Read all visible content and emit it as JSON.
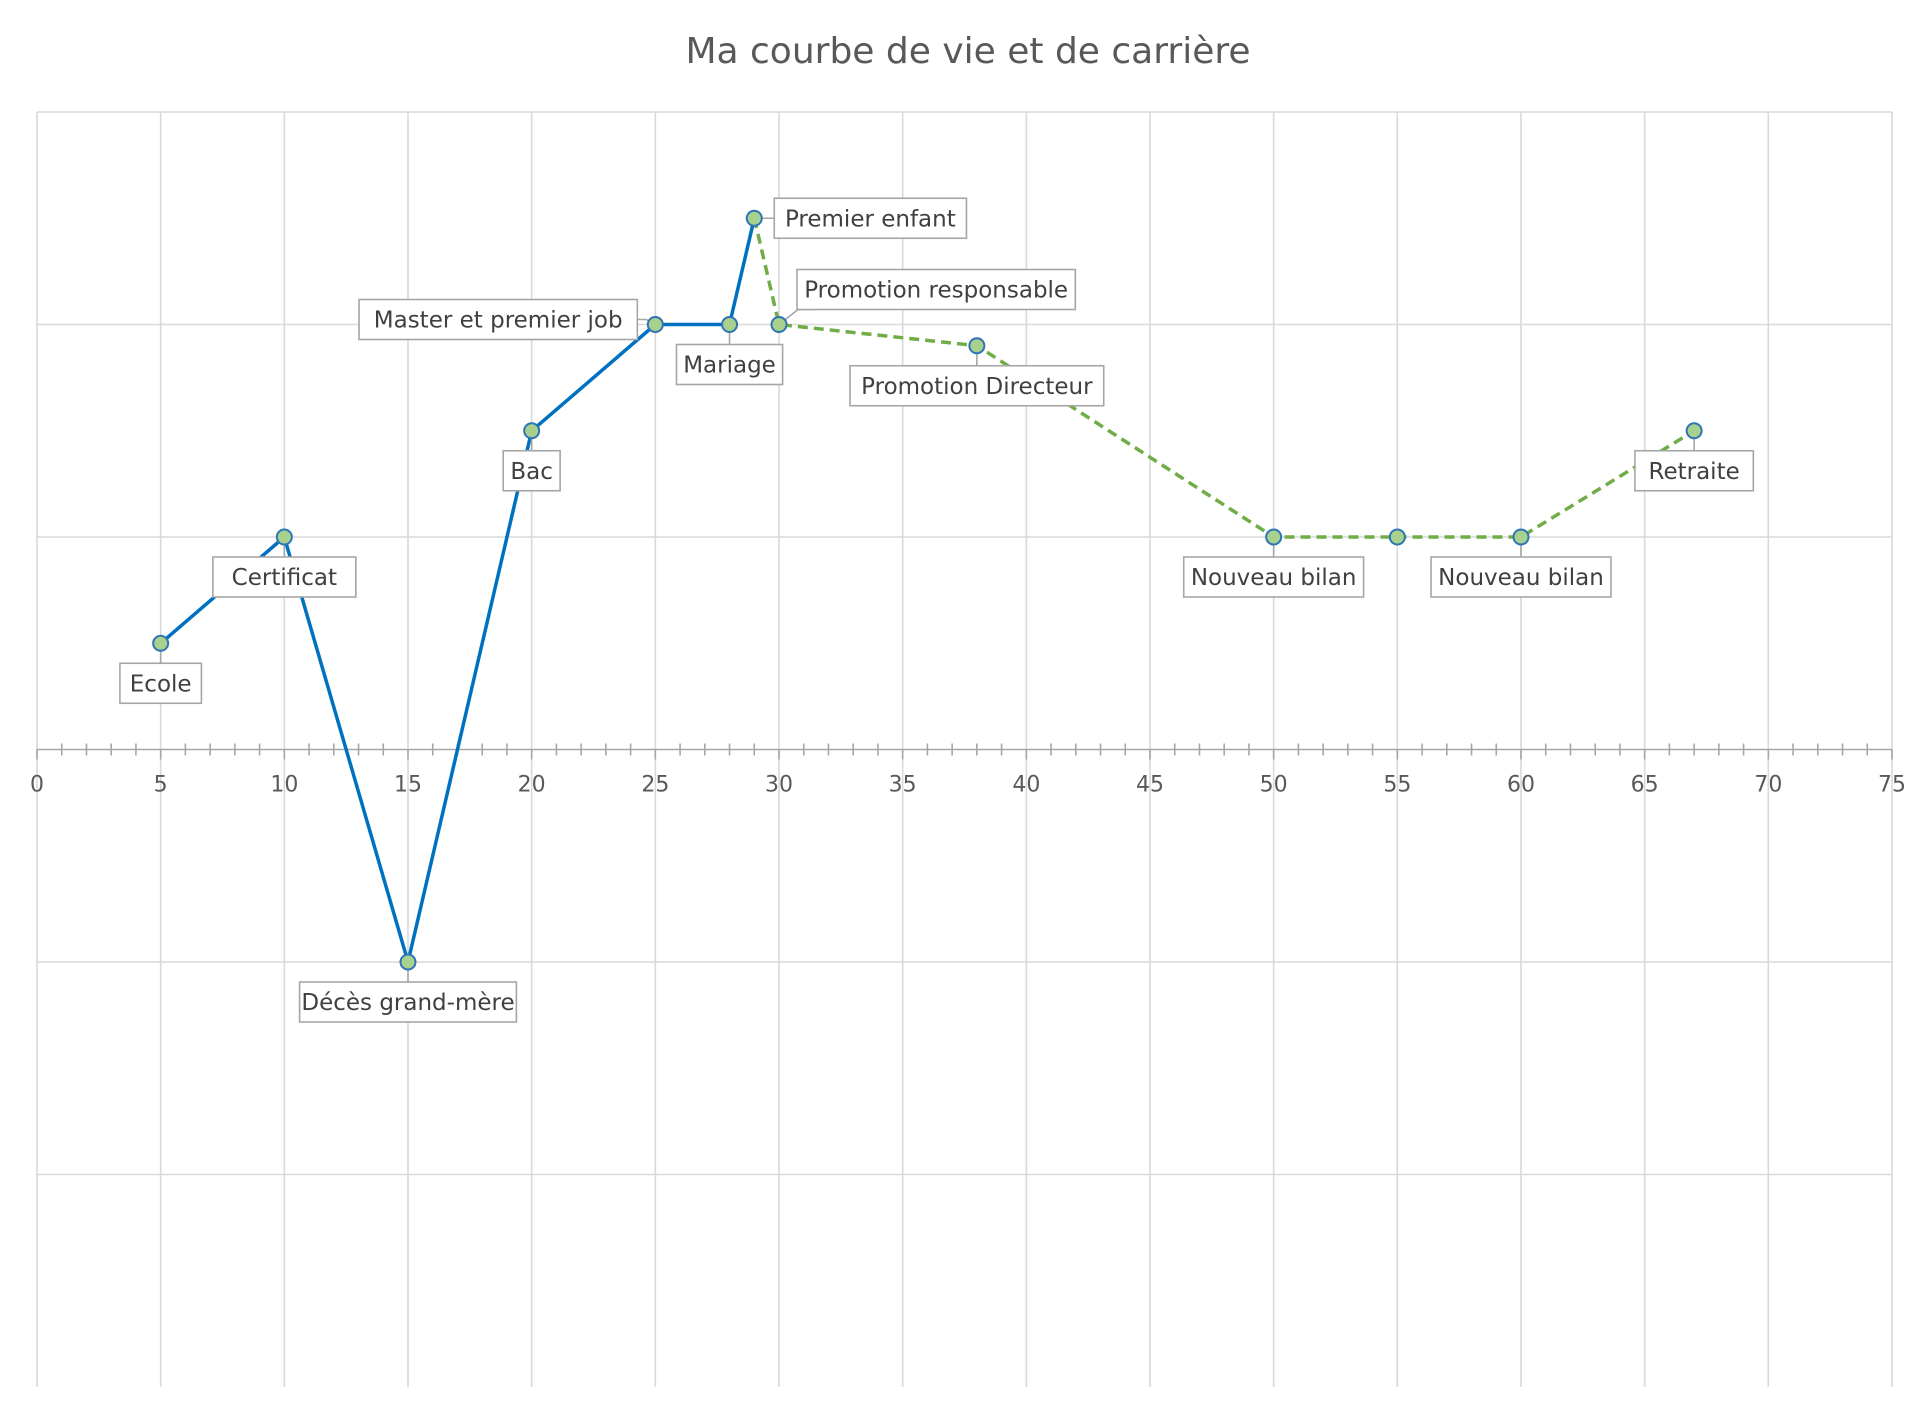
{
  "chart_data": {
    "type": "scatter",
    "title": "Ma courbe de vie et de carrière",
    "xlabel": "",
    "ylabel": "",
    "xlim": [
      0,
      75
    ],
    "ylim": [
      -6,
      6
    ],
    "x_ticks": [
      0,
      5,
      10,
      15,
      20,
      25,
      30,
      35,
      40,
      45,
      50,
      55,
      60,
      65,
      70,
      75
    ],
    "y_gridlines": [
      -4,
      -2,
      0,
      2,
      4
    ],
    "y_tick_labels_shown": false,
    "grid": true,
    "legend": "none",
    "colors": {
      "past_line": "#0070c0",
      "future_line": "#70ad47",
      "marker_fill": "#a9d18e",
      "marker_edge": "#2e75b6",
      "grid": "#d9d9d9",
      "axis": "#a6a6a6",
      "label_border": "#a6a6a6",
      "title": "#595959",
      "text": "#404040"
    },
    "series": [
      {
        "style": "solid",
        "points": [
          {
            "x": 5,
            "y": 1,
            "label": "Ecole",
            "label_pos": "below"
          },
          {
            "x": 10,
            "y": 2,
            "label": "Certificat",
            "label_pos": "below"
          },
          {
            "x": 15,
            "y": -2,
            "label": "Décès grand-mère",
            "label_pos": "below"
          },
          {
            "x": 20,
            "y": 3,
            "label": "Bac",
            "label_pos": "below"
          },
          {
            "x": 25,
            "y": 4,
            "label": "Master et premier job",
            "label_pos": "left"
          },
          {
            "x": 28,
            "y": 4,
            "label": "Mariage",
            "label_pos": "below"
          },
          {
            "x": 29,
            "y": 5,
            "label": "Premier enfant",
            "label_pos": "right"
          }
        ]
      },
      {
        "style": "dashed",
        "points": [
          {
            "x": 29,
            "y": 5,
            "label": "",
            "label_pos": ""
          },
          {
            "x": 30,
            "y": 4,
            "label": "Promotion responsable",
            "label_pos": "upper-right"
          },
          {
            "x": 38,
            "y": 3.8,
            "label": "Promotion Directeur",
            "label_pos": "below"
          },
          {
            "x": 50,
            "y": 2,
            "label": "Nouveau bilan",
            "label_pos": "below"
          },
          {
            "x": 55,
            "y": 2,
            "label": "",
            "label_pos": ""
          },
          {
            "x": 60,
            "y": 2,
            "label": "Nouveau bilan",
            "label_pos": "below"
          },
          {
            "x": 67,
            "y": 3,
            "label": "Retraite",
            "label_pos": "below"
          }
        ]
      }
    ]
  }
}
